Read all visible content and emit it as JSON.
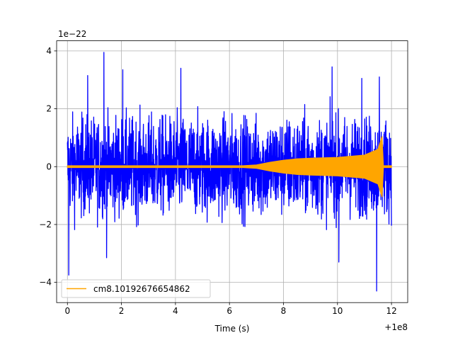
{
  "chart_data": {
    "type": "line",
    "title": "",
    "xlabel": "Time (s)",
    "ylabel": "",
    "y_scale_label": "1e−22",
    "x_offset_label": "+1e8",
    "xlim": [
      -0.4,
      12.6
    ],
    "ylim": [
      -4.7,
      4.35
    ],
    "x_ticks": [
      0,
      2,
      4,
      6,
      8,
      10,
      12
    ],
    "x_tick_labels": [
      "0",
      "2",
      "4",
      "6",
      "8",
      "10",
      "12"
    ],
    "y_ticks": [
      -4,
      -2,
      0,
      2,
      4
    ],
    "y_tick_labels": [
      "−4",
      "−2",
      "0",
      "2",
      "4"
    ],
    "grid": true,
    "legend": {
      "placement": "lower-left"
    },
    "series": [
      {
        "name": "",
        "color": "#0000ff",
        "kind": "noise",
        "x_range": [
          0,
          12
        ],
        "typical_amplitude": 1.1,
        "peak_values": [
          {
            "x": 0.05,
            "y": -3.75
          },
          {
            "x": 1.35,
            "y": 3.95
          },
          {
            "x": 0.75,
            "y": 3.15
          },
          {
            "x": 2.05,
            "y": 3.35
          },
          {
            "x": 4.2,
            "y": 3.4
          },
          {
            "x": 9.8,
            "y": 3.45
          },
          {
            "x": 10.9,
            "y": 3.05
          },
          {
            "x": 11.55,
            "y": 3.1
          },
          {
            "x": 11.45,
            "y": -4.3
          },
          {
            "x": 10.05,
            "y": -3.3
          },
          {
            "x": 1.45,
            "y": -3.15
          }
        ]
      },
      {
        "name": "cm8.10192676654862",
        "color": "#ffa500",
        "kind": "chirp",
        "envelope": [
          {
            "x": 0,
            "y": 0.03
          },
          {
            "x": 6.5,
            "y": 0.03
          },
          {
            "x": 7.0,
            "y": 0.06
          },
          {
            "x": 7.5,
            "y": 0.15
          },
          {
            "x": 8.0,
            "y": 0.22
          },
          {
            "x": 8.5,
            "y": 0.27
          },
          {
            "x": 9.0,
            "y": 0.29
          },
          {
            "x": 10.0,
            "y": 0.32
          },
          {
            "x": 11.0,
            "y": 0.4
          },
          {
            "x": 11.5,
            "y": 0.6
          },
          {
            "x": 11.65,
            "y": 1.05
          },
          {
            "x": 11.7,
            "y": 0.03
          },
          {
            "x": 12.0,
            "y": 0.03
          }
        ]
      }
    ]
  }
}
